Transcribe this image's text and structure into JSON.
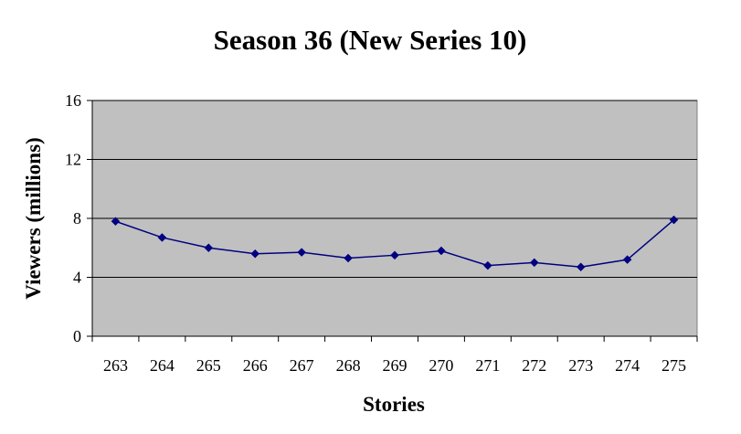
{
  "chart_data": {
    "type": "line",
    "title": "Season 36 (New Series 10)",
    "xlabel": "Stories",
    "ylabel": "Viewers (millions)",
    "categories": [
      "263",
      "264",
      "265",
      "266",
      "267",
      "268",
      "269",
      "270",
      "271",
      "272",
      "273",
      "274",
      "275"
    ],
    "series": [
      {
        "values": [
          7.8,
          6.7,
          6.0,
          5.6,
          5.7,
          5.3,
          5.5,
          5.8,
          4.8,
          5.0,
          4.7,
          5.2,
          7.9
        ]
      }
    ],
    "ylim": [
      0,
      16
    ],
    "yticks": [
      "0",
      "4",
      "8",
      "12",
      "16"
    ],
    "grid": true,
    "legend": "none",
    "colors": {
      "plot_area": "#c0c0c0",
      "line": "#000080",
      "gridline": "#000000"
    }
  }
}
